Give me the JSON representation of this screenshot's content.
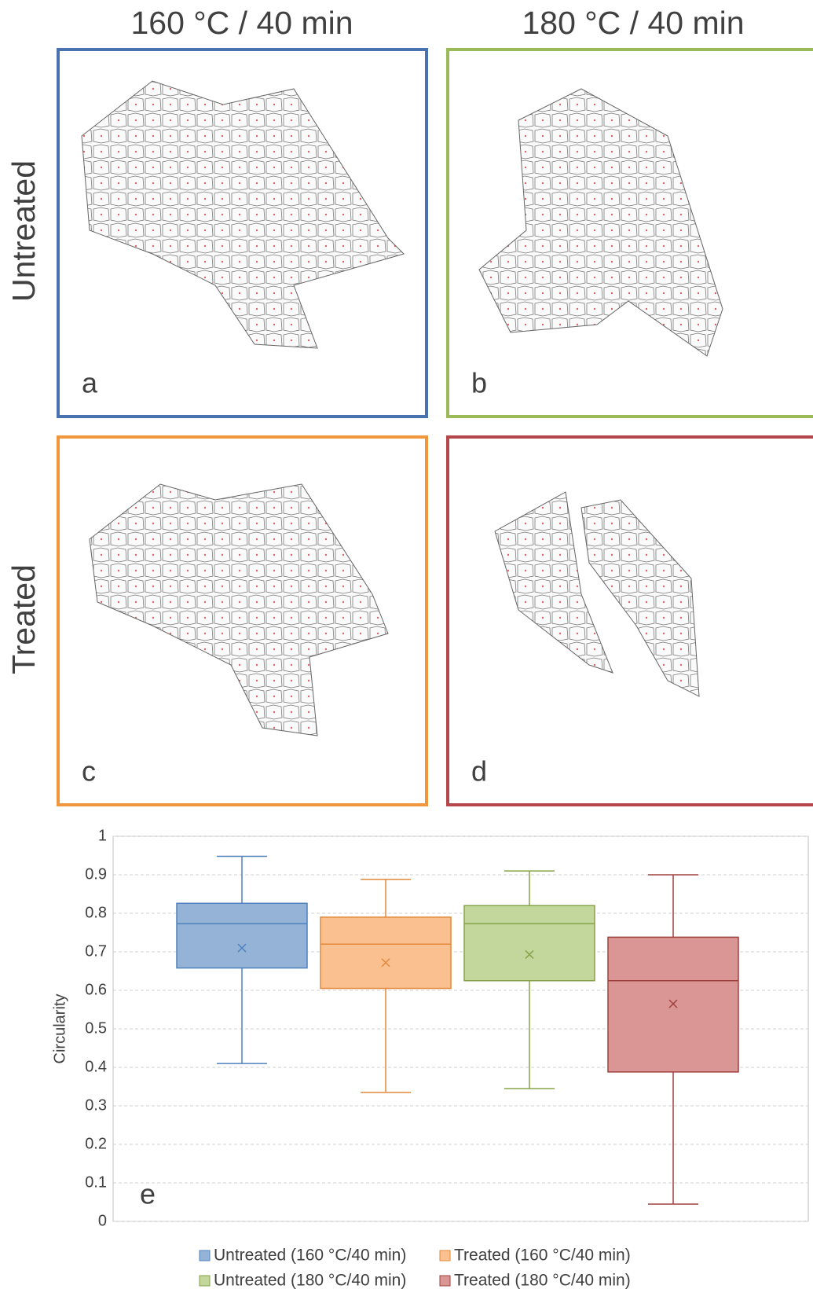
{
  "column_headers": [
    "160 °C / 40 min",
    "180 °C / 40 min"
  ],
  "row_labels": [
    "Untreated",
    "Treated"
  ],
  "panels": [
    {
      "letter": "a",
      "color": "#4a72b0"
    },
    {
      "letter": "b",
      "color": "#9bbb59"
    },
    {
      "letter": "c",
      "color": "#f0963c"
    },
    {
      "letter": "d",
      "color": "#b5464b"
    }
  ],
  "chart_data": {
    "type": "box",
    "panel_letter": "e",
    "y_label": "Circularity",
    "ylim": [
      0,
      1
    ],
    "yticks": [
      0,
      0.1,
      0.2,
      0.3,
      0.4,
      0.5,
      0.6,
      0.7,
      0.8,
      0.9,
      1
    ],
    "grid": true,
    "series": [
      {
        "name": "Untreated (160 °C/40 min)",
        "color": "#95b3d7",
        "edge_color": "#4f81bd",
        "min": 0.41,
        "q1": 0.658,
        "median": 0.773,
        "q3": 0.826,
        "max": 0.948,
        "mean": 0.71
      },
      {
        "name": "Treated (160 °C/40 min)",
        "color": "#fac090",
        "edge_color": "#e2883a",
        "min": 0.335,
        "q1": 0.605,
        "median": 0.72,
        "q3": 0.79,
        "max": 0.888,
        "mean": 0.672
      },
      {
        "name": "Untreated (180 °C/40 min)",
        "color": "#c3d69b",
        "edge_color": "#86a34a",
        "min": 0.345,
        "q1": 0.625,
        "median": 0.773,
        "q3": 0.82,
        "max": 0.91,
        "mean": 0.693
      },
      {
        "name": "Treated (180 °C/40 min)",
        "color": "#d99694",
        "edge_color": "#a0413e",
        "min": 0.045,
        "q1": 0.388,
        "median": 0.625,
        "q3": 0.738,
        "max": 0.9,
        "mean": 0.565
      }
    ]
  }
}
